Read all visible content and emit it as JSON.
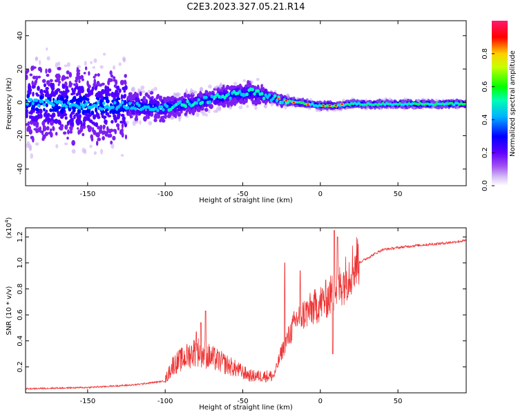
{
  "title": "C2E3.2023.327.05.21.R14",
  "chart_data": [
    {
      "type": "heatmap",
      "xlabel": "Height of straight line (km)",
      "ylabel": "Frequency (Hz)",
      "xlim": [
        -190,
        94
      ],
      "ylim": [
        -50,
        49
      ],
      "x_ticks": [
        -150,
        -100,
        -50,
        0,
        50
      ],
      "y_ticks": [
        -40,
        -20,
        0,
        20,
        40
      ],
      "colorbar": {
        "label": "Normalized spectral amplitude",
        "range": [
          0.0,
          1.0
        ],
        "ticks": [
          0.0,
          0.2,
          0.4,
          0.6,
          0.8
        ],
        "colors": [
          "#ffffff",
          "#c9a6f2",
          "#8a2be2",
          "#5a00ff",
          "#0000ff",
          "#00c8ff",
          "#00ff00",
          "#ffff00",
          "#ff0000",
          "#ff1493"
        ]
      },
      "ridge_track": [
        {
          "x": -190,
          "y": 0
        },
        {
          "x": -150,
          "y": -2
        },
        {
          "x": -125,
          "y": -2
        },
        {
          "x": -100,
          "y": -3
        },
        {
          "x": -85,
          "y": -1
        },
        {
          "x": -70,
          "y": 2
        },
        {
          "x": -60,
          "y": 4
        },
        {
          "x": -45,
          "y": 6
        },
        {
          "x": -35,
          "y": 4
        },
        {
          "x": -25,
          "y": 1
        },
        {
          "x": -15,
          "y": 0
        },
        {
          "x": 0,
          "y": -2
        },
        {
          "x": 10,
          "y": -2
        },
        {
          "x": 20,
          "y": -1
        },
        {
          "x": 50,
          "y": -1
        },
        {
          "x": 94,
          "y": -1
        }
      ]
    },
    {
      "type": "line",
      "xlabel": "Height of straight line (km)",
      "ylabel": "SNR (10 * v/v)",
      "y_multiplier_label": "(x10^4)",
      "xlim": [
        -190,
        94
      ],
      "ylim": [
        0,
        1.27
      ],
      "x_ticks": [
        -150,
        -100,
        -50,
        0,
        50
      ],
      "y_ticks": [
        0.2,
        0.4,
        0.6,
        0.8,
        1.0,
        1.2
      ],
      "color": "#ee3333",
      "envelope": [
        {
          "x": -190,
          "y": 0.03
        },
        {
          "x": -150,
          "y": 0.04
        },
        {
          "x": -120,
          "y": 0.06
        },
        {
          "x": -100,
          "y": 0.09
        },
        {
          "x": -95,
          "y": 0.2
        },
        {
          "x": -80,
          "y": 0.3
        },
        {
          "x": -70,
          "y": 0.25
        },
        {
          "x": -60,
          "y": 0.2
        },
        {
          "x": -45,
          "y": 0.12
        },
        {
          "x": -30,
          "y": 0.12
        },
        {
          "x": -25,
          "y": 0.3
        },
        {
          "x": -15,
          "y": 0.55
        },
        {
          "x": -5,
          "y": 0.62
        },
        {
          "x": 5,
          "y": 0.7
        },
        {
          "x": 15,
          "y": 0.82
        },
        {
          "x": 25,
          "y": 1.0
        },
        {
          "x": 40,
          "y": 1.1
        },
        {
          "x": 60,
          "y": 1.13
        },
        {
          "x": 80,
          "y": 1.15
        },
        {
          "x": 94,
          "y": 1.17
        }
      ],
      "spikes": [
        {
          "x": -74,
          "y": 0.63
        },
        {
          "x": -77,
          "y": 0.54
        },
        {
          "x": -80,
          "y": 0.47
        },
        {
          "x": -23,
          "y": 1.0
        },
        {
          "x": -13,
          "y": 0.94
        },
        {
          "x": 9,
          "y": 1.25
        },
        {
          "x": 11,
          "y": 1.2
        },
        {
          "x": 8,
          "y": 0.3
        }
      ]
    }
  ]
}
